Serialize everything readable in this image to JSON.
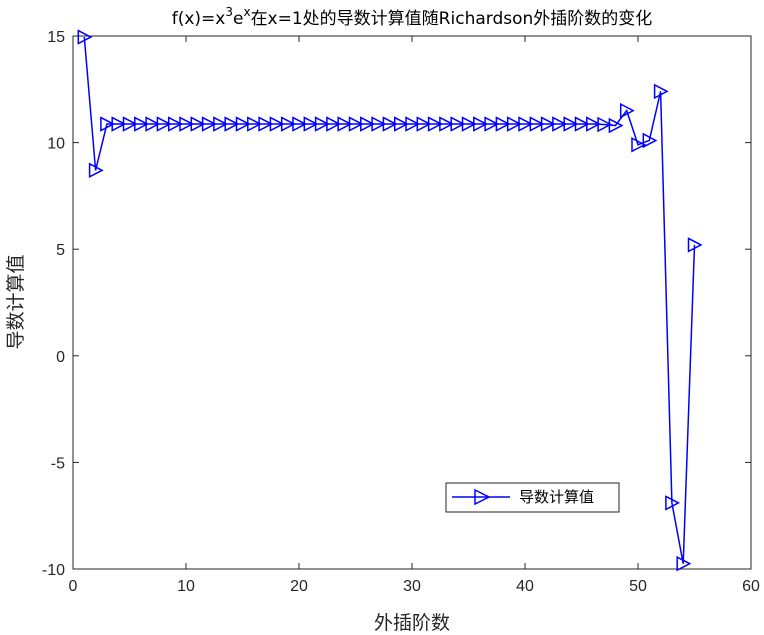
{
  "chart_data": {
    "type": "line",
    "title": {
      "prefix": "f(x)=x",
      "sup1": "3",
      "mid": "e",
      "sup2": "x",
      "suffix": "在x=1处的导数计算值随Richardson外插阶数的变化"
    },
    "xlabel": "外插阶数",
    "ylabel": "导数计算值",
    "xlim": [
      0,
      60
    ],
    "ylim": [
      -10,
      15
    ],
    "xticks": [
      0,
      10,
      20,
      30,
      40,
      50,
      60
    ],
    "yticks": [
      -10,
      -5,
      0,
      5,
      10,
      15
    ],
    "grid": false,
    "legend_position": "bottom-right",
    "series": [
      {
        "name": "导数计算值",
        "color": "#0000ff",
        "marker": "triangle-right",
        "x": [
          1,
          2,
          3,
          4,
          5,
          6,
          7,
          8,
          9,
          10,
          11,
          12,
          13,
          14,
          15,
          16,
          17,
          18,
          19,
          20,
          21,
          22,
          23,
          24,
          25,
          26,
          27,
          28,
          29,
          30,
          31,
          32,
          33,
          34,
          35,
          36,
          37,
          38,
          39,
          40,
          41,
          42,
          43,
          44,
          45,
          46,
          47,
          48,
          49,
          50,
          51,
          52,
          53,
          54,
          55
        ],
        "y": [
          14.95,
          8.7,
          10.87,
          10.87,
          10.87,
          10.87,
          10.87,
          10.87,
          10.87,
          10.87,
          10.87,
          10.87,
          10.87,
          10.87,
          10.87,
          10.87,
          10.87,
          10.87,
          10.87,
          10.87,
          10.87,
          10.87,
          10.87,
          10.87,
          10.87,
          10.87,
          10.87,
          10.87,
          10.87,
          10.87,
          10.87,
          10.87,
          10.87,
          10.87,
          10.87,
          10.87,
          10.87,
          10.87,
          10.87,
          10.87,
          10.87,
          10.87,
          10.87,
          10.87,
          10.87,
          10.87,
          10.85,
          10.8,
          11.5,
          9.9,
          10.1,
          12.4,
          -6.9,
          -9.75,
          5.2
        ]
      }
    ]
  }
}
